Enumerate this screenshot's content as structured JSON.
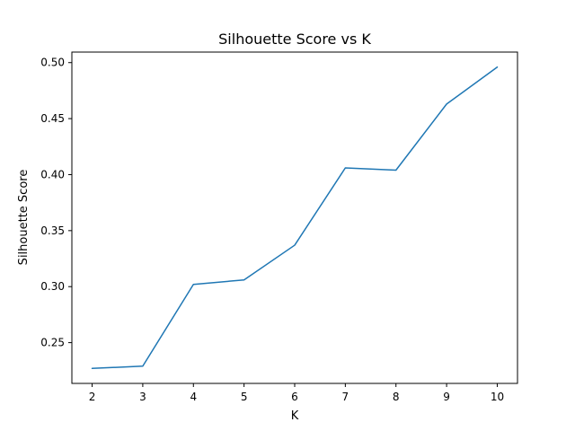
{
  "chart_data": {
    "type": "line",
    "title": "Silhouette Score vs K",
    "xlabel": "K",
    "ylabel": "Silhouette Score",
    "x": [
      2,
      3,
      4,
      5,
      6,
      7,
      8,
      9,
      10
    ],
    "series": [
      {
        "values": [
          0.227,
          0.229,
          0.302,
          0.306,
          0.337,
          0.406,
          0.404,
          0.463,
          0.496
        ],
        "color": "#1f77b4"
      }
    ],
    "xlim": [
      1.6,
      10.4
    ],
    "ylim": [
      0.2136,
      0.5094
    ],
    "x_ticks": [
      "2",
      "3",
      "4",
      "5",
      "6",
      "7",
      "8",
      "9",
      "10"
    ],
    "y_ticks": [
      "0.25",
      "0.30",
      "0.35",
      "0.40",
      "0.45",
      "0.50"
    ],
    "grid": false,
    "legend": "none"
  }
}
